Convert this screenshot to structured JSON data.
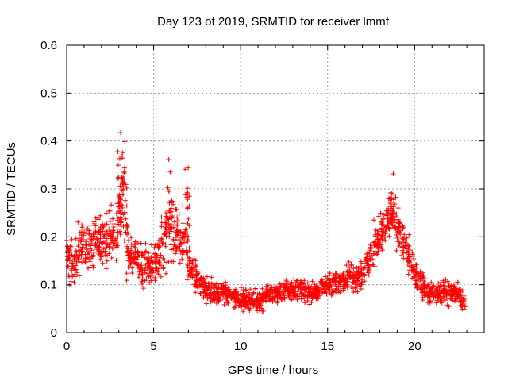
{
  "chart_data": {
    "type": "scatter",
    "title": "Day 123 of 2019, SRMTID for receiver lmmf",
    "xlabel": "GPS time / hours",
    "ylabel": "SRMTID / TECUs",
    "xlim": [
      0,
      24
    ],
    "ylim": [
      0,
      0.6
    ],
    "xticks": [
      0,
      5,
      10,
      15,
      20
    ],
    "xtick_labels": [
      "0",
      "5",
      "10",
      "15",
      "20"
    ],
    "yticks": [
      0,
      0.1,
      0.2,
      0.3,
      0.4,
      0.5,
      0.6
    ],
    "ytick_labels": [
      "0",
      "0.1",
      "0.2",
      "0.3",
      "0.4",
      "0.5",
      "0.6"
    ],
    "grid": true,
    "marker": "plus",
    "color": "#ff0000",
    "series": [
      {
        "name": "SRMTID",
        "x": [
          0.0,
          0.2,
          0.4,
          0.6,
          0.8,
          1.0,
          1.2,
          1.4,
          1.6,
          1.8,
          2.0,
          2.2,
          2.4,
          2.6,
          2.8,
          3.0,
          3.1,
          3.2,
          3.3,
          3.4,
          3.6,
          3.8,
          4.0,
          4.2,
          4.4,
          4.6,
          4.8,
          5.0,
          5.2,
          5.4,
          5.6,
          5.8,
          5.9,
          6.0,
          6.2,
          6.4,
          6.6,
          6.8,
          6.9,
          7.0,
          7.2,
          7.4,
          7.6,
          7.8,
          8.0,
          8.2,
          8.4,
          8.6,
          8.8,
          9.0,
          9.2,
          9.4,
          9.6,
          9.8,
          10.0,
          10.2,
          10.4,
          10.6,
          10.8,
          11.0,
          11.2,
          11.4,
          11.6,
          11.8,
          12.0,
          12.2,
          12.4,
          12.6,
          12.8,
          13.0,
          13.2,
          13.4,
          13.6,
          13.8,
          14.0,
          14.2,
          14.4,
          14.6,
          14.8,
          15.0,
          15.2,
          15.4,
          15.6,
          15.8,
          16.0,
          16.2,
          16.4,
          16.6,
          16.8,
          17.0,
          17.2,
          17.4,
          17.6,
          17.8,
          18.0,
          18.2,
          18.4,
          18.6,
          18.7,
          18.8,
          19.0,
          19.2,
          19.4,
          19.6,
          19.8,
          20.0,
          20.2,
          20.4,
          20.6,
          20.8,
          21.0,
          21.2,
          21.4,
          21.6,
          21.8,
          22.0,
          22.2,
          22.4,
          22.6,
          22.8
        ],
        "y": [
          0.16,
          0.15,
          0.14,
          0.15,
          0.18,
          0.19,
          0.17,
          0.18,
          0.19,
          0.2,
          0.19,
          0.2,
          0.21,
          0.19,
          0.2,
          0.25,
          0.3,
          0.33,
          0.28,
          0.2,
          0.15,
          0.17,
          0.16,
          0.15,
          0.13,
          0.14,
          0.13,
          0.14,
          0.15,
          0.16,
          0.19,
          0.23,
          0.25,
          0.22,
          0.2,
          0.2,
          0.18,
          0.2,
          0.26,
          0.15,
          0.13,
          0.12,
          0.11,
          0.1,
          0.09,
          0.09,
          0.085,
          0.08,
          0.08,
          0.085,
          0.08,
          0.08,
          0.075,
          0.075,
          0.07,
          0.07,
          0.065,
          0.07,
          0.065,
          0.065,
          0.07,
          0.075,
          0.08,
          0.08,
          0.085,
          0.08,
          0.085,
          0.09,
          0.085,
          0.085,
          0.09,
          0.09,
          0.09,
          0.085,
          0.08,
          0.085,
          0.09,
          0.09,
          0.095,
          0.1,
          0.1,
          0.1,
          0.105,
          0.11,
          0.11,
          0.115,
          0.12,
          0.11,
          0.11,
          0.12,
          0.15,
          0.16,
          0.17,
          0.19,
          0.21,
          0.22,
          0.23,
          0.25,
          0.27,
          0.25,
          0.22,
          0.2,
          0.18,
          0.16,
          0.14,
          0.12,
          0.11,
          0.1,
          0.09,
          0.085,
          0.08,
          0.075,
          0.08,
          0.08,
          0.085,
          0.09,
          0.085,
          0.09,
          0.08,
          0.06
        ],
        "spread": [
          0.07,
          0.07,
          0.06,
          0.06,
          0.07,
          0.07,
          0.07,
          0.07,
          0.06,
          0.07,
          0.07,
          0.07,
          0.07,
          0.06,
          0.07,
          0.08,
          0.14,
          0.18,
          0.12,
          0.07,
          0.06,
          0.06,
          0.06,
          0.06,
          0.06,
          0.06,
          0.05,
          0.06,
          0.06,
          0.06,
          0.08,
          0.12,
          0.16,
          0.09,
          0.08,
          0.08,
          0.07,
          0.08,
          0.11,
          0.06,
          0.05,
          0.05,
          0.04,
          0.04,
          0.04,
          0.04,
          0.035,
          0.03,
          0.03,
          0.03,
          0.03,
          0.03,
          0.03,
          0.03,
          0.03,
          0.03,
          0.03,
          0.03,
          0.03,
          0.03,
          0.03,
          0.03,
          0.03,
          0.03,
          0.03,
          0.03,
          0.03,
          0.03,
          0.03,
          0.03,
          0.03,
          0.03,
          0.03,
          0.03,
          0.03,
          0.03,
          0.03,
          0.03,
          0.03,
          0.03,
          0.03,
          0.03,
          0.035,
          0.035,
          0.035,
          0.04,
          0.04,
          0.04,
          0.04,
          0.04,
          0.045,
          0.05,
          0.05,
          0.05,
          0.06,
          0.06,
          0.06,
          0.07,
          0.08,
          0.06,
          0.06,
          0.06,
          0.06,
          0.05,
          0.05,
          0.05,
          0.04,
          0.04,
          0.03,
          0.03,
          0.03,
          0.03,
          0.03,
          0.03,
          0.035,
          0.04,
          0.03,
          0.03,
          0.03,
          0.02
        ]
      }
    ]
  }
}
